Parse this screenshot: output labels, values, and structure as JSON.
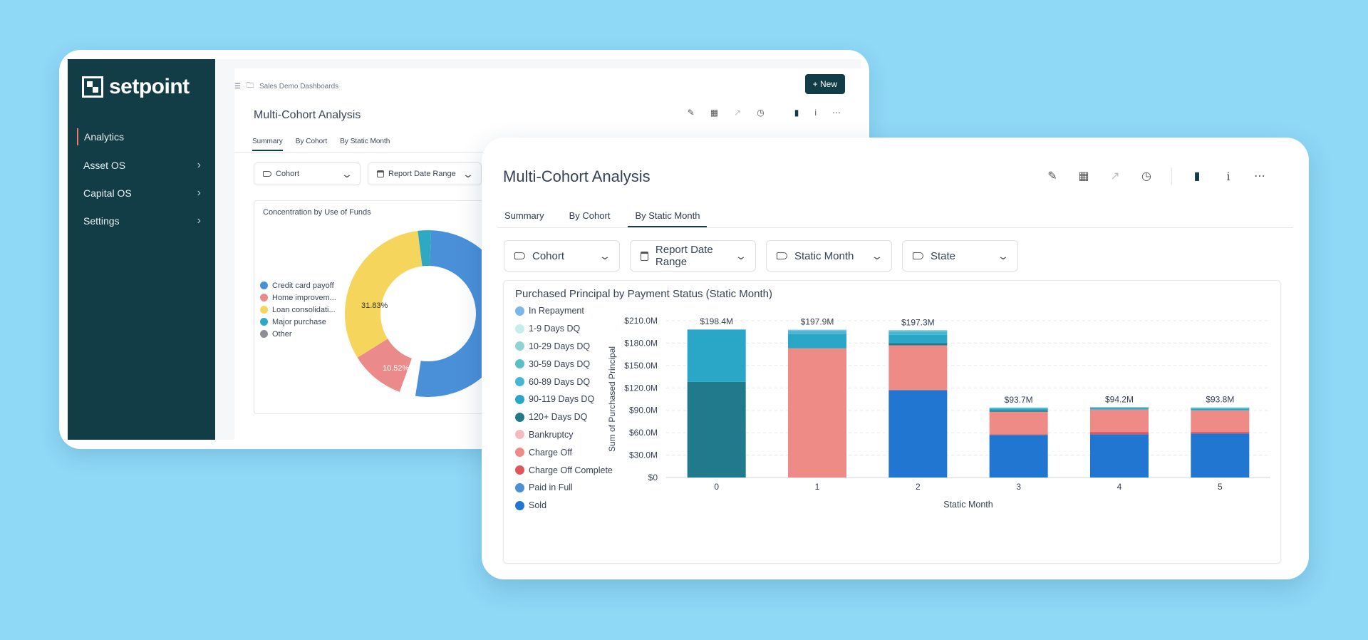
{
  "back_window": {
    "logo": "setpoint",
    "sidebar": [
      {
        "label": "Analytics",
        "has_chevron": false
      },
      {
        "label": "Asset OS",
        "has_chevron": true
      },
      {
        "label": "Capital OS",
        "has_chevron": true
      },
      {
        "label": "Settings",
        "has_chevron": true
      }
    ],
    "breadcrumb": "Sales Demo Dashboards",
    "new_button": "New",
    "title": "Multi-Cohort Analysis",
    "tabs": [
      "Summary",
      "By Cohort",
      "By Static Month"
    ],
    "filters": [
      "Cohort",
      "Report Date Range"
    ],
    "chart": {
      "title": "Concentration by Use of Funds",
      "legend": [
        {
          "label": "Credit card payoff",
          "color": "#4a90d9"
        },
        {
          "label": "Home improvem...",
          "color": "#ea8a8a"
        },
        {
          "label": "Loan consolidati...",
          "color": "#f6d55c"
        },
        {
          "label": "Major purchase",
          "color": "#2fa8c4"
        },
        {
          "label": "Other",
          "color": "#8e8e99"
        }
      ],
      "label_31": "31.83%",
      "label_10": "10.52%"
    }
  },
  "front_window": {
    "title": "Multi-Cohort Analysis",
    "tabs": [
      "Summary",
      "By Cohort",
      "By Static Month"
    ],
    "active_tab": "By Static Month",
    "filters": [
      {
        "label": "Cohort",
        "icon": "tag-icon"
      },
      {
        "label": "Report Date Range",
        "icon": "calendar-icon"
      },
      {
        "label": "Static Month",
        "icon": "tag-icon"
      },
      {
        "label": "State",
        "icon": "tag-icon"
      }
    ]
  },
  "chart_data": {
    "type": "bar",
    "title": "Purchased Principal by Payment Status (Static Month)",
    "xlabel": "Static Month",
    "ylabel": "Sum of Purchased Principal",
    "ylim": [
      0,
      210
    ],
    "yticks": [
      "$0",
      "$30.0M",
      "$60.0M",
      "$90.0M",
      "$120.0M",
      "$150.0M",
      "$180.0M",
      "$210.0M"
    ],
    "categories": [
      "0",
      "1",
      "2",
      "3",
      "4",
      "5"
    ],
    "totals": [
      "$198.4M",
      "$197.9M",
      "$197.3M",
      "$93.7M",
      "$94.2M",
      "$93.8M"
    ],
    "series": [
      {
        "name": "Sold",
        "color": "#2176d2",
        "values": [
          0,
          0,
          117,
          57,
          58,
          59
        ]
      },
      {
        "name": "Paid in Full",
        "color": "#4a90d9",
        "values": [
          0,
          0,
          0,
          0,
          0,
          0
        ]
      },
      {
        "name": "Charge Off Complete",
        "color": "#e15759",
        "values": [
          0,
          0,
          0,
          1,
          3,
          2
        ]
      },
      {
        "name": "Charge Off",
        "color": "#ef8b87",
        "values": [
          0,
          173,
          60,
          30,
          30,
          29
        ]
      },
      {
        "name": "Bankruptcy",
        "color": "#f7b9c0",
        "values": [
          0,
          0,
          0,
          0,
          0,
          0
        ]
      },
      {
        "name": "120+ Days DQ",
        "color": "#217a8c",
        "values": [
          128,
          0,
          3,
          2,
          0,
          0
        ]
      },
      {
        "name": "90-119 Days DQ",
        "color": "#2aa6c6",
        "values": [
          70,
          19,
          11,
          2,
          2,
          2
        ]
      },
      {
        "name": "60-89 Days DQ",
        "color": "#44b6d6",
        "values": [
          0,
          4,
          4,
          1,
          1,
          1
        ]
      },
      {
        "name": "30-59 Days DQ",
        "color": "#57c0c4",
        "values": [
          0,
          1,
          2,
          0.7,
          0.2,
          0.8
        ]
      },
      {
        "name": "10-29 Days DQ",
        "color": "#8fd3d3",
        "values": [
          0,
          0,
          0,
          0,
          0,
          0
        ]
      },
      {
        "name": "1-9 Days DQ",
        "color": "#c6ecec",
        "values": [
          0,
          0,
          0,
          0,
          0,
          0
        ]
      },
      {
        "name": "In Repayment",
        "color": "#7ab6e8",
        "values": [
          0.4,
          0.9,
          0.3,
          0,
          0,
          0
        ]
      }
    ],
    "legend_order": [
      "In Repayment",
      "1-9 Days DQ",
      "10-29 Days DQ",
      "30-59 Days DQ",
      "60-89 Days DQ",
      "90-119 Days DQ",
      "120+ Days DQ",
      "Bankruptcy",
      "Charge Off",
      "Charge Off Complete",
      "Paid in Full",
      "Sold"
    ],
    "grid": true,
    "legend_position": "left"
  }
}
